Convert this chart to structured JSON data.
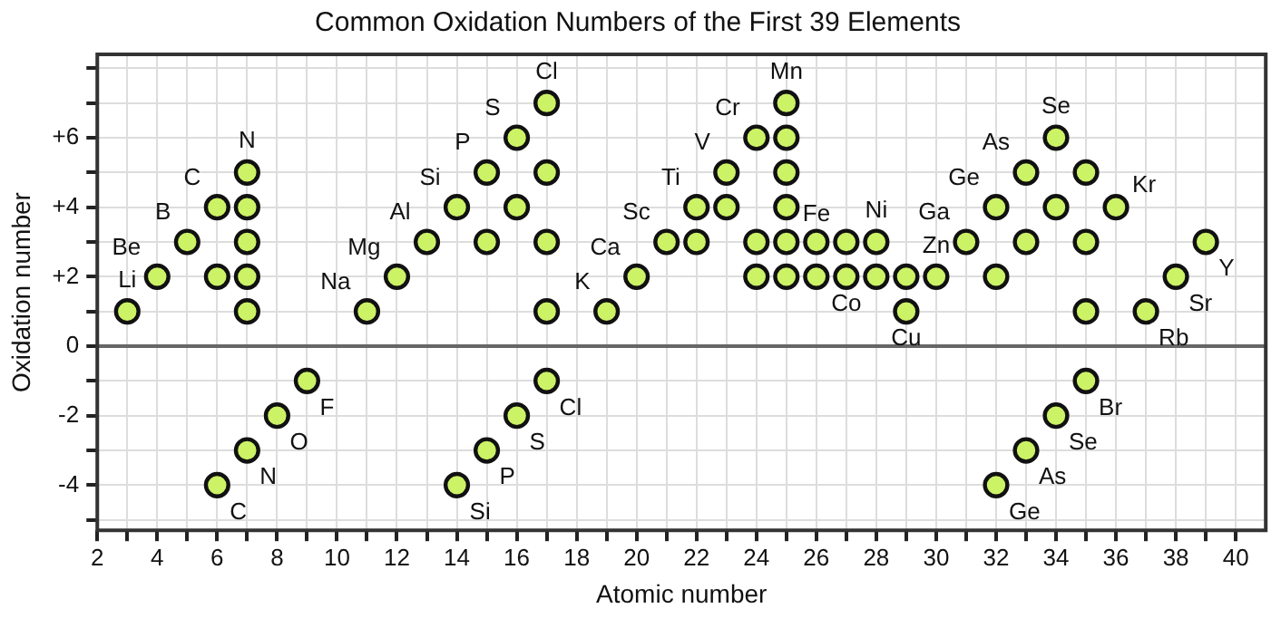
{
  "chart_data": {
    "type": "scatter",
    "title": "Common Oxidation Numbers of the First 39 Elements",
    "xlabel": "Atomic number",
    "ylabel": "Oxidation number",
    "series": [
      {
        "color": "#ccf266",
        "x": [
          3,
          4,
          5,
          6,
          6,
          6,
          7,
          7,
          7,
          7,
          7,
          7,
          8,
          9,
          11,
          12,
          13,
          14,
          14,
          15,
          15,
          15,
          16,
          16,
          16,
          17,
          17,
          17,
          17,
          17,
          19,
          20,
          21,
          22,
          22,
          23,
          23,
          24,
          24,
          24,
          25,
          25,
          25,
          25,
          25,
          25,
          26,
          26,
          27,
          27,
          28,
          28,
          29,
          29,
          30,
          31,
          32,
          32,
          32,
          33,
          33,
          33,
          34,
          34,
          34,
          35,
          35,
          35,
          35,
          36,
          37,
          38,
          39
        ],
        "values": [
          1,
          2,
          3,
          4,
          2,
          -4,
          5,
          4,
          3,
          2,
          1,
          -3,
          -2,
          -1,
          1,
          2,
          3,
          4,
          -4,
          5,
          3,
          -3,
          6,
          4,
          -2,
          7,
          5,
          3,
          1,
          -1,
          1,
          2,
          3,
          4,
          3,
          5,
          4,
          6,
          3,
          2,
          7,
          6,
          5,
          4,
          3,
          2,
          3,
          2,
          3,
          2,
          3,
          2,
          2,
          1,
          2,
          3,
          4,
          2,
          -4,
          5,
          3,
          -3,
          6,
          4,
          -2,
          5,
          3,
          1,
          -1,
          4,
          1,
          2,
          3
        ]
      }
    ],
    "xlim": [
      2,
      41
    ],
    "xticks": [
      2,
      {
        "value": 3,
        "label": null
      },
      4,
      {
        "value": 5,
        "label": null
      },
      6,
      {
        "value": 7,
        "label": null
      },
      8,
      {
        "value": 9,
        "label": null
      },
      10,
      {
        "value": 11,
        "label": null
      },
      12,
      {
        "value": 13,
        "label": null
      },
      14,
      {
        "value": 15,
        "label": null
      },
      16,
      {
        "value": 17,
        "label": null
      },
      18,
      {
        "value": 19,
        "label": null
      },
      20,
      {
        "value": 21,
        "label": null
      },
      22,
      {
        "value": 23,
        "label": null
      },
      24,
      {
        "value": 25,
        "label": null
      },
      26,
      {
        "value": 27,
        "label": null
      },
      28,
      {
        "value": 29,
        "label": null
      },
      30,
      {
        "value": 31,
        "label": null
      },
      32,
      {
        "value": 33,
        "label": null
      },
      34,
      {
        "value": 35,
        "label": null
      },
      36,
      {
        "value": 37,
        "label": null
      },
      38,
      {
        "value": 39,
        "label": null
      },
      40
    ],
    "ylim": [
      -5.3,
      8.4
    ],
    "yticks": [
      {
        "value": -5,
        "label": null
      },
      {
        "value": -4,
        "label": "-4"
      },
      {
        "value": -3,
        "label": null
      },
      {
        "value": -2,
        "label": "-2"
      },
      {
        "value": -1,
        "label": null
      },
      0,
      {
        "value": 1,
        "label": null
      },
      {
        "value": 2,
        "label": "+2"
      },
      {
        "value": 3,
        "label": null
      },
      {
        "value": 4,
        "label": "+4"
      },
      {
        "value": 5,
        "label": null
      },
      {
        "value": 6,
        "label": "+6"
      },
      {
        "value": 7,
        "label": null
      },
      {
        "value": 8,
        "label": null
      }
    ],
    "grid": true,
    "marker": "circle",
    "legend": false,
    "ref_lines": [
      {
        "axis": "y",
        "value": 0,
        "color": "#666666"
      }
    ],
    "annotations": [
      {
        "text": "Li",
        "x": 3,
        "y": 1
      },
      {
        "text": "Be",
        "x": 4,
        "y": 2
      },
      {
        "text": "B",
        "x": 5,
        "y": 3
      },
      {
        "text": "C",
        "x": 6,
        "y": 4
      },
      {
        "text": "N",
        "x": 7,
        "y": 5
      },
      {
        "text": "Na",
        "x": 11,
        "y": 1
      },
      {
        "text": "Mg",
        "x": 12,
        "y": 2
      },
      {
        "text": "Al",
        "x": 13,
        "y": 3
      },
      {
        "text": "Si",
        "x": 14,
        "y": 4
      },
      {
        "text": "P",
        "x": 15,
        "y": 5
      },
      {
        "text": "S",
        "x": 16,
        "y": 6
      },
      {
        "text": "Cl",
        "x": 17,
        "y": 7
      },
      {
        "text": "K",
        "x": 19,
        "y": 1
      },
      {
        "text": "Ca",
        "x": 20,
        "y": 2
      },
      {
        "text": "Sc",
        "x": 21,
        "y": 3
      },
      {
        "text": "Ti",
        "x": 22,
        "y": 4
      },
      {
        "text": "V",
        "x": 23,
        "y": 5
      },
      {
        "text": "Cr",
        "x": 24,
        "y": 6
      },
      {
        "text": "Mn",
        "x": 25,
        "y": 7
      },
      {
        "text": "Fe",
        "x": 25,
        "y": 4
      },
      {
        "text": "Co",
        "x": 27,
        "y": 2
      },
      {
        "text": "Ni",
        "x": 28,
        "y": 3
      },
      {
        "text": "Cu",
        "x": 29,
        "y": 1
      },
      {
        "text": "Zn",
        "x": 30,
        "y": 2
      },
      {
        "text": "Ga",
        "x": 31,
        "y": 3
      },
      {
        "text": "Ge",
        "x": 32,
        "y": 4
      },
      {
        "text": "As",
        "x": 33,
        "y": 5
      },
      {
        "text": "Se",
        "x": 34,
        "y": 6
      },
      {
        "text": "Kr",
        "x": 36,
        "y": 4
      },
      {
        "text": "Rb",
        "x": 37,
        "y": 1
      },
      {
        "text": "Sr",
        "x": 38,
        "y": 2
      },
      {
        "text": "Y",
        "x": 39,
        "y": 3
      },
      {
        "text": "C",
        "x": 6,
        "y": -4
      },
      {
        "text": "N",
        "x": 7,
        "y": -3
      },
      {
        "text": "O",
        "x": 8,
        "y": -2
      },
      {
        "text": "F",
        "x": 9,
        "y": -1
      },
      {
        "text": "Si",
        "x": 14,
        "y": -4
      },
      {
        "text": "P",
        "x": 15,
        "y": -3
      },
      {
        "text": "S",
        "x": 16,
        "y": -2
      },
      {
        "text": "Cl",
        "x": 17,
        "y": -1
      },
      {
        "text": "Ge",
        "x": 32,
        "y": -4
      },
      {
        "text": "As",
        "x": 33,
        "y": -3
      },
      {
        "text": "Se",
        "x": 34,
        "y": -2
      },
      {
        "text": "Br",
        "x": 35,
        "y": -1
      }
    ]
  }
}
